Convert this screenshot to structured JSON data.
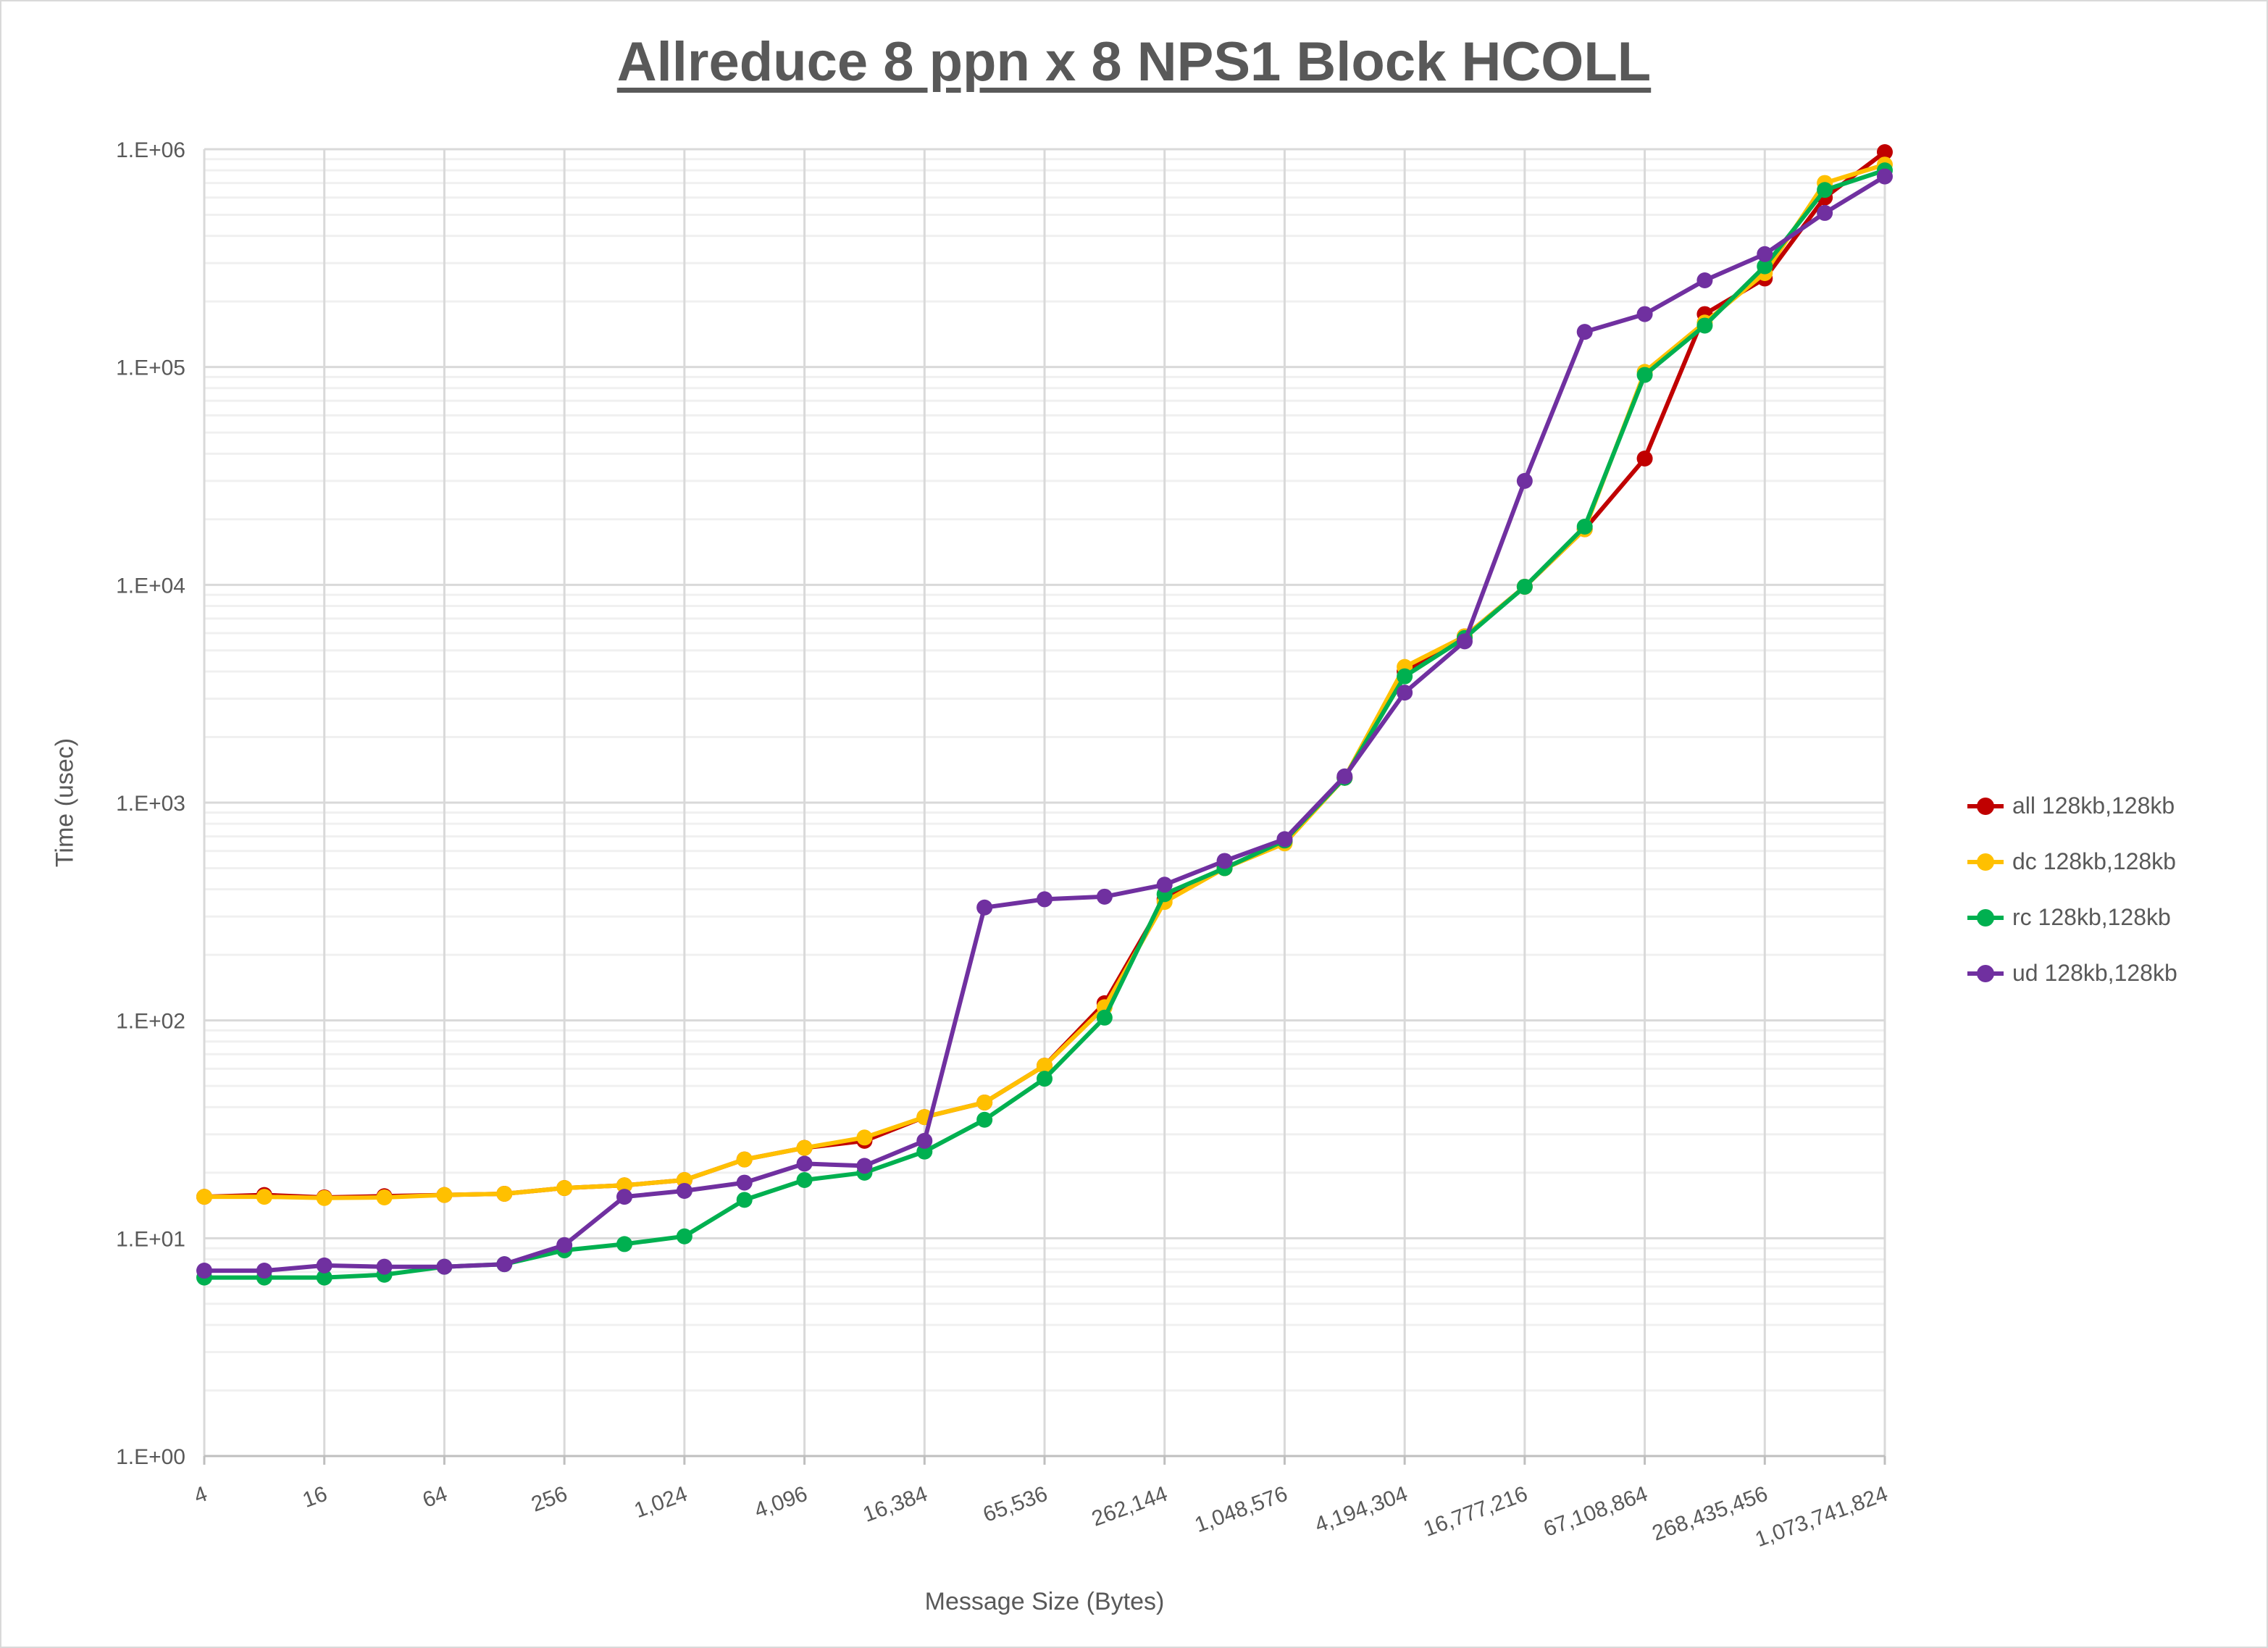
{
  "chart_data": {
    "type": "line",
    "title": "Allreduce 8 ppn x 8 NPS1 Block HCOLL",
    "xlabel": "Message Size (Bytes)",
    "ylabel": "Time (usec)",
    "yscale": "log",
    "ylim": [
      1,
      1000000
    ],
    "grid": true,
    "legend_position": "right",
    "x": [
      4,
      8,
      16,
      32,
      64,
      128,
      256,
      512,
      1024,
      2048,
      4096,
      8192,
      16384,
      32768,
      65536,
      131072,
      262144,
      524288,
      1048576,
      2097152,
      4194304,
      8388608,
      16777216,
      33554432,
      67108864,
      134217728,
      268435456,
      536870912,
      1073741824
    ],
    "x_tick_labels": [
      "4",
      "16",
      "64",
      "256",
      "1,024",
      "4,096",
      "16,384",
      "65,536",
      "262,144",
      "1,048,576",
      "4,194,304",
      "16,777,216",
      "67,108,864",
      "268,435,456",
      "1,073,741,824"
    ],
    "y_tick_labels": [
      "1.E+00",
      "1.E+01",
      "1.E+02",
      "1.E+03",
      "1.E+04",
      "1.E+05",
      "1.E+06"
    ],
    "series": [
      {
        "name": "all 128kb,128kb",
        "color": "#c00000",
        "values": [
          15.5,
          15.8,
          15.4,
          15.6,
          15.8,
          16,
          17,
          17.5,
          18.5,
          23,
          26,
          28,
          36,
          42,
          62,
          120,
          360,
          500,
          660,
          1300,
          4000,
          5800,
          9800,
          18000,
          38000,
          175000,
          255000,
          600000,
          970000
        ]
      },
      {
        "name": "dc 128kb,128kb",
        "color": "#ffc000",
        "values": [
          15.5,
          15.5,
          15.3,
          15.4,
          15.8,
          16,
          17,
          17.5,
          18.5,
          23,
          26,
          29,
          36,
          42,
          62,
          115,
          350,
          500,
          650,
          1300,
          4200,
          5800,
          9800,
          18000,
          95000,
          160000,
          270000,
          700000,
          850000
        ]
      },
      {
        "name": "rc 128kb,128kb",
        "color": "#00b050",
        "values": [
          6.6,
          6.6,
          6.6,
          6.8,
          7.4,
          7.6,
          8.8,
          9.4,
          10.2,
          15,
          18.5,
          20,
          25,
          35,
          54,
          103,
          380,
          500,
          670,
          1300,
          3800,
          5700,
          9800,
          18500,
          92000,
          155000,
          290000,
          650000,
          800000
        ]
      },
      {
        "name": "ud 128kb,128kb",
        "color": "#7030a0",
        "values": [
          7.1,
          7.1,
          7.5,
          7.4,
          7.4,
          7.6,
          9.3,
          15.5,
          16.5,
          18,
          22,
          21.5,
          28,
          330,
          360,
          370,
          420,
          540,
          680,
          1320,
          3200,
          5500,
          30000,
          145000,
          175000,
          250000,
          330000,
          510000,
          750000
        ]
      }
    ]
  }
}
